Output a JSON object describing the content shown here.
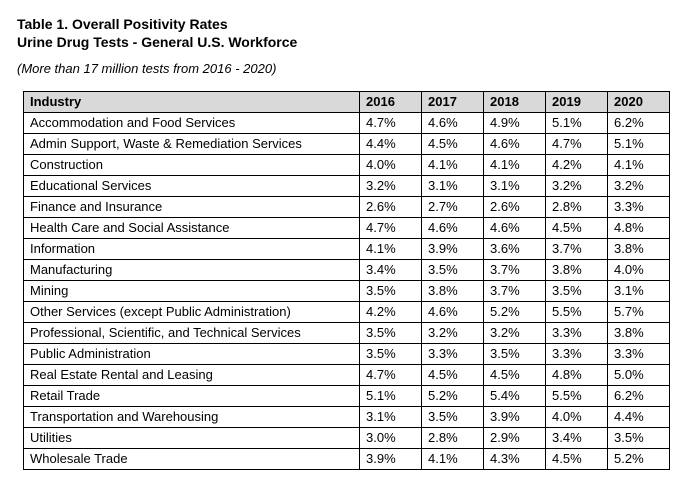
{
  "document": {
    "title": "Table 1. Overall Positivity Rates",
    "subtitle": "Urine Drug Tests - General U.S. Workforce",
    "note": "(More than 17 million tests from 2016 - 2020)"
  },
  "table": {
    "headers": [
      "Industry",
      "2016",
      "2017",
      "2018",
      "2019",
      "2020"
    ],
    "rows": [
      [
        "Accommodation and Food Services",
        "4.7%",
        "4.6%",
        "4.9%",
        "5.1%",
        "6.2%"
      ],
      [
        "Admin Support, Waste & Remediation Services",
        "4.4%",
        "4.5%",
        "4.6%",
        "4.7%",
        "5.1%"
      ],
      [
        "Construction",
        "4.0%",
        "4.1%",
        "4.1%",
        "4.2%",
        "4.1%"
      ],
      [
        "Educational Services",
        "3.2%",
        "3.1%",
        "3.1%",
        "3.2%",
        "3.2%"
      ],
      [
        "Finance and Insurance",
        "2.6%",
        "2.7%",
        "2.6%",
        "2.8%",
        "3.3%"
      ],
      [
        "Health Care and Social Assistance",
        "4.7%",
        "4.6%",
        "4.6%",
        "4.5%",
        "4.8%"
      ],
      [
        "Information",
        "4.1%",
        "3.9%",
        "3.6%",
        "3.7%",
        "3.8%"
      ],
      [
        "Manufacturing",
        "3.4%",
        "3.5%",
        "3.7%",
        "3.8%",
        "4.0%"
      ],
      [
        "Mining",
        "3.5%",
        "3.8%",
        "3.7%",
        "3.5%",
        "3.1%"
      ],
      [
        "Other Services (except Public Administration)",
        "4.2%",
        "4.6%",
        "5.2%",
        "5.5%",
        "5.7%"
      ],
      [
        "Professional, Scientific, and Technical Services",
        "3.5%",
        "3.2%",
        "3.2%",
        "3.3%",
        "3.8%"
      ],
      [
        "Public Administration",
        "3.5%",
        "3.3%",
        "3.5%",
        "3.3%",
        "3.3%"
      ],
      [
        "Real Estate Rental and Leasing",
        "4.7%",
        "4.5%",
        "4.5%",
        "4.8%",
        "5.0%"
      ],
      [
        "Retail Trade",
        "5.1%",
        "5.2%",
        "5.4%",
        "5.5%",
        "6.2%"
      ],
      [
        "Transportation and Warehousing",
        "3.1%",
        "3.5%",
        "3.9%",
        "4.0%",
        "4.4%"
      ],
      [
        "Utilities",
        "3.0%",
        "2.8%",
        "2.9%",
        "3.4%",
        "3.5%"
      ],
      [
        "Wholesale Trade",
        "3.9%",
        "4.1%",
        "4.3%",
        "4.5%",
        "5.2%"
      ]
    ]
  }
}
